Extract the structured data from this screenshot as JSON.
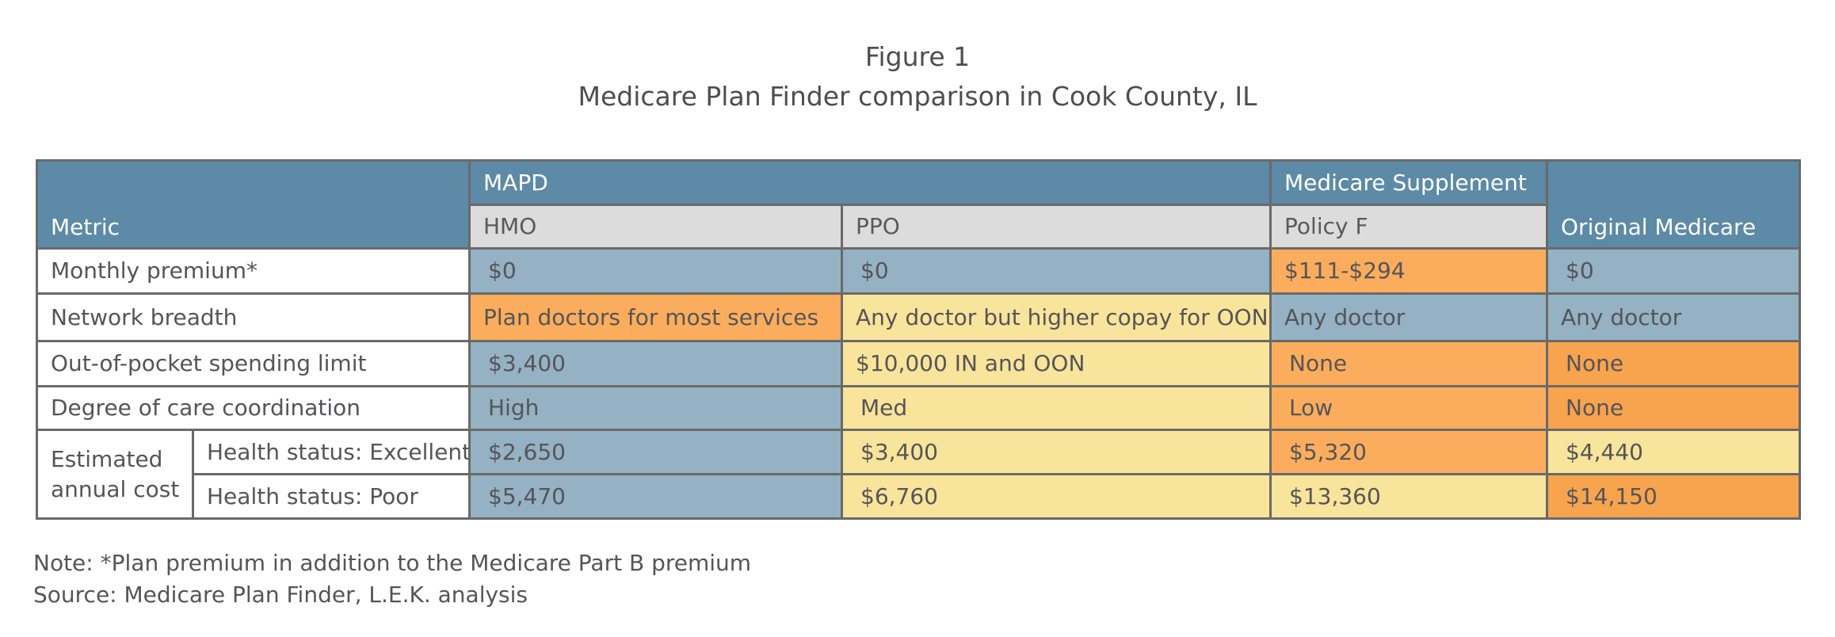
{
  "figure": {
    "number": "Figure 1",
    "title": "Medicare Plan Finder comparison in Cook County, IL"
  },
  "table": {
    "header": {
      "metric": "Metric",
      "mapd": "MAPD",
      "medicare_supplement": "Medicare Supplement",
      "original_medicare": "Original Medicare",
      "hmo": "HMO",
      "ppo": "PPO",
      "policy_f": "Policy F"
    },
    "rows": [
      {
        "label": "Monthly premium*",
        "hmo": "$0",
        "ppo": "$0",
        "policy_f": "$111-$294",
        "original": "$0"
      },
      {
        "label": "Network breadth",
        "hmo": "Plan doctors for most services",
        "ppo": "Any doctor but higher copay for OON",
        "policy_f": "Any doctor",
        "original": "Any doctor"
      },
      {
        "label": "Out-of-pocket spending limit",
        "hmo": "$3,400",
        "ppo": "$10,000 IN and OON",
        "policy_f": "None",
        "original": "None"
      },
      {
        "label": "Degree of care coordination",
        "hmo": "High",
        "ppo": "Med",
        "policy_f": "Low",
        "original": "None"
      }
    ],
    "estimated": {
      "label": "Estimated annual cost",
      "rows": [
        {
          "label": "Health status: Excellent",
          "hmo": "$2,650",
          "ppo": "$3,400",
          "policy_f": "$5,320",
          "original": "$4,440"
        },
        {
          "label": "Health status: Poor",
          "hmo": "$5,470",
          "ppo": "$6,760",
          "policy_f": "$13,360",
          "original": "$14,150"
        }
      ]
    },
    "colors": {
      "header": "#5d8aa6",
      "subheader": "#dcdcdc",
      "favorable": "#95b1c4",
      "moderate": "#f9e49b",
      "unfavorable": "#fbad5d"
    }
  },
  "notes": {
    "note": "Note: *Plan premium in addition to the Medicare Part B premium",
    "source": "Source: Medicare Plan Finder, L.E.K. analysis"
  }
}
